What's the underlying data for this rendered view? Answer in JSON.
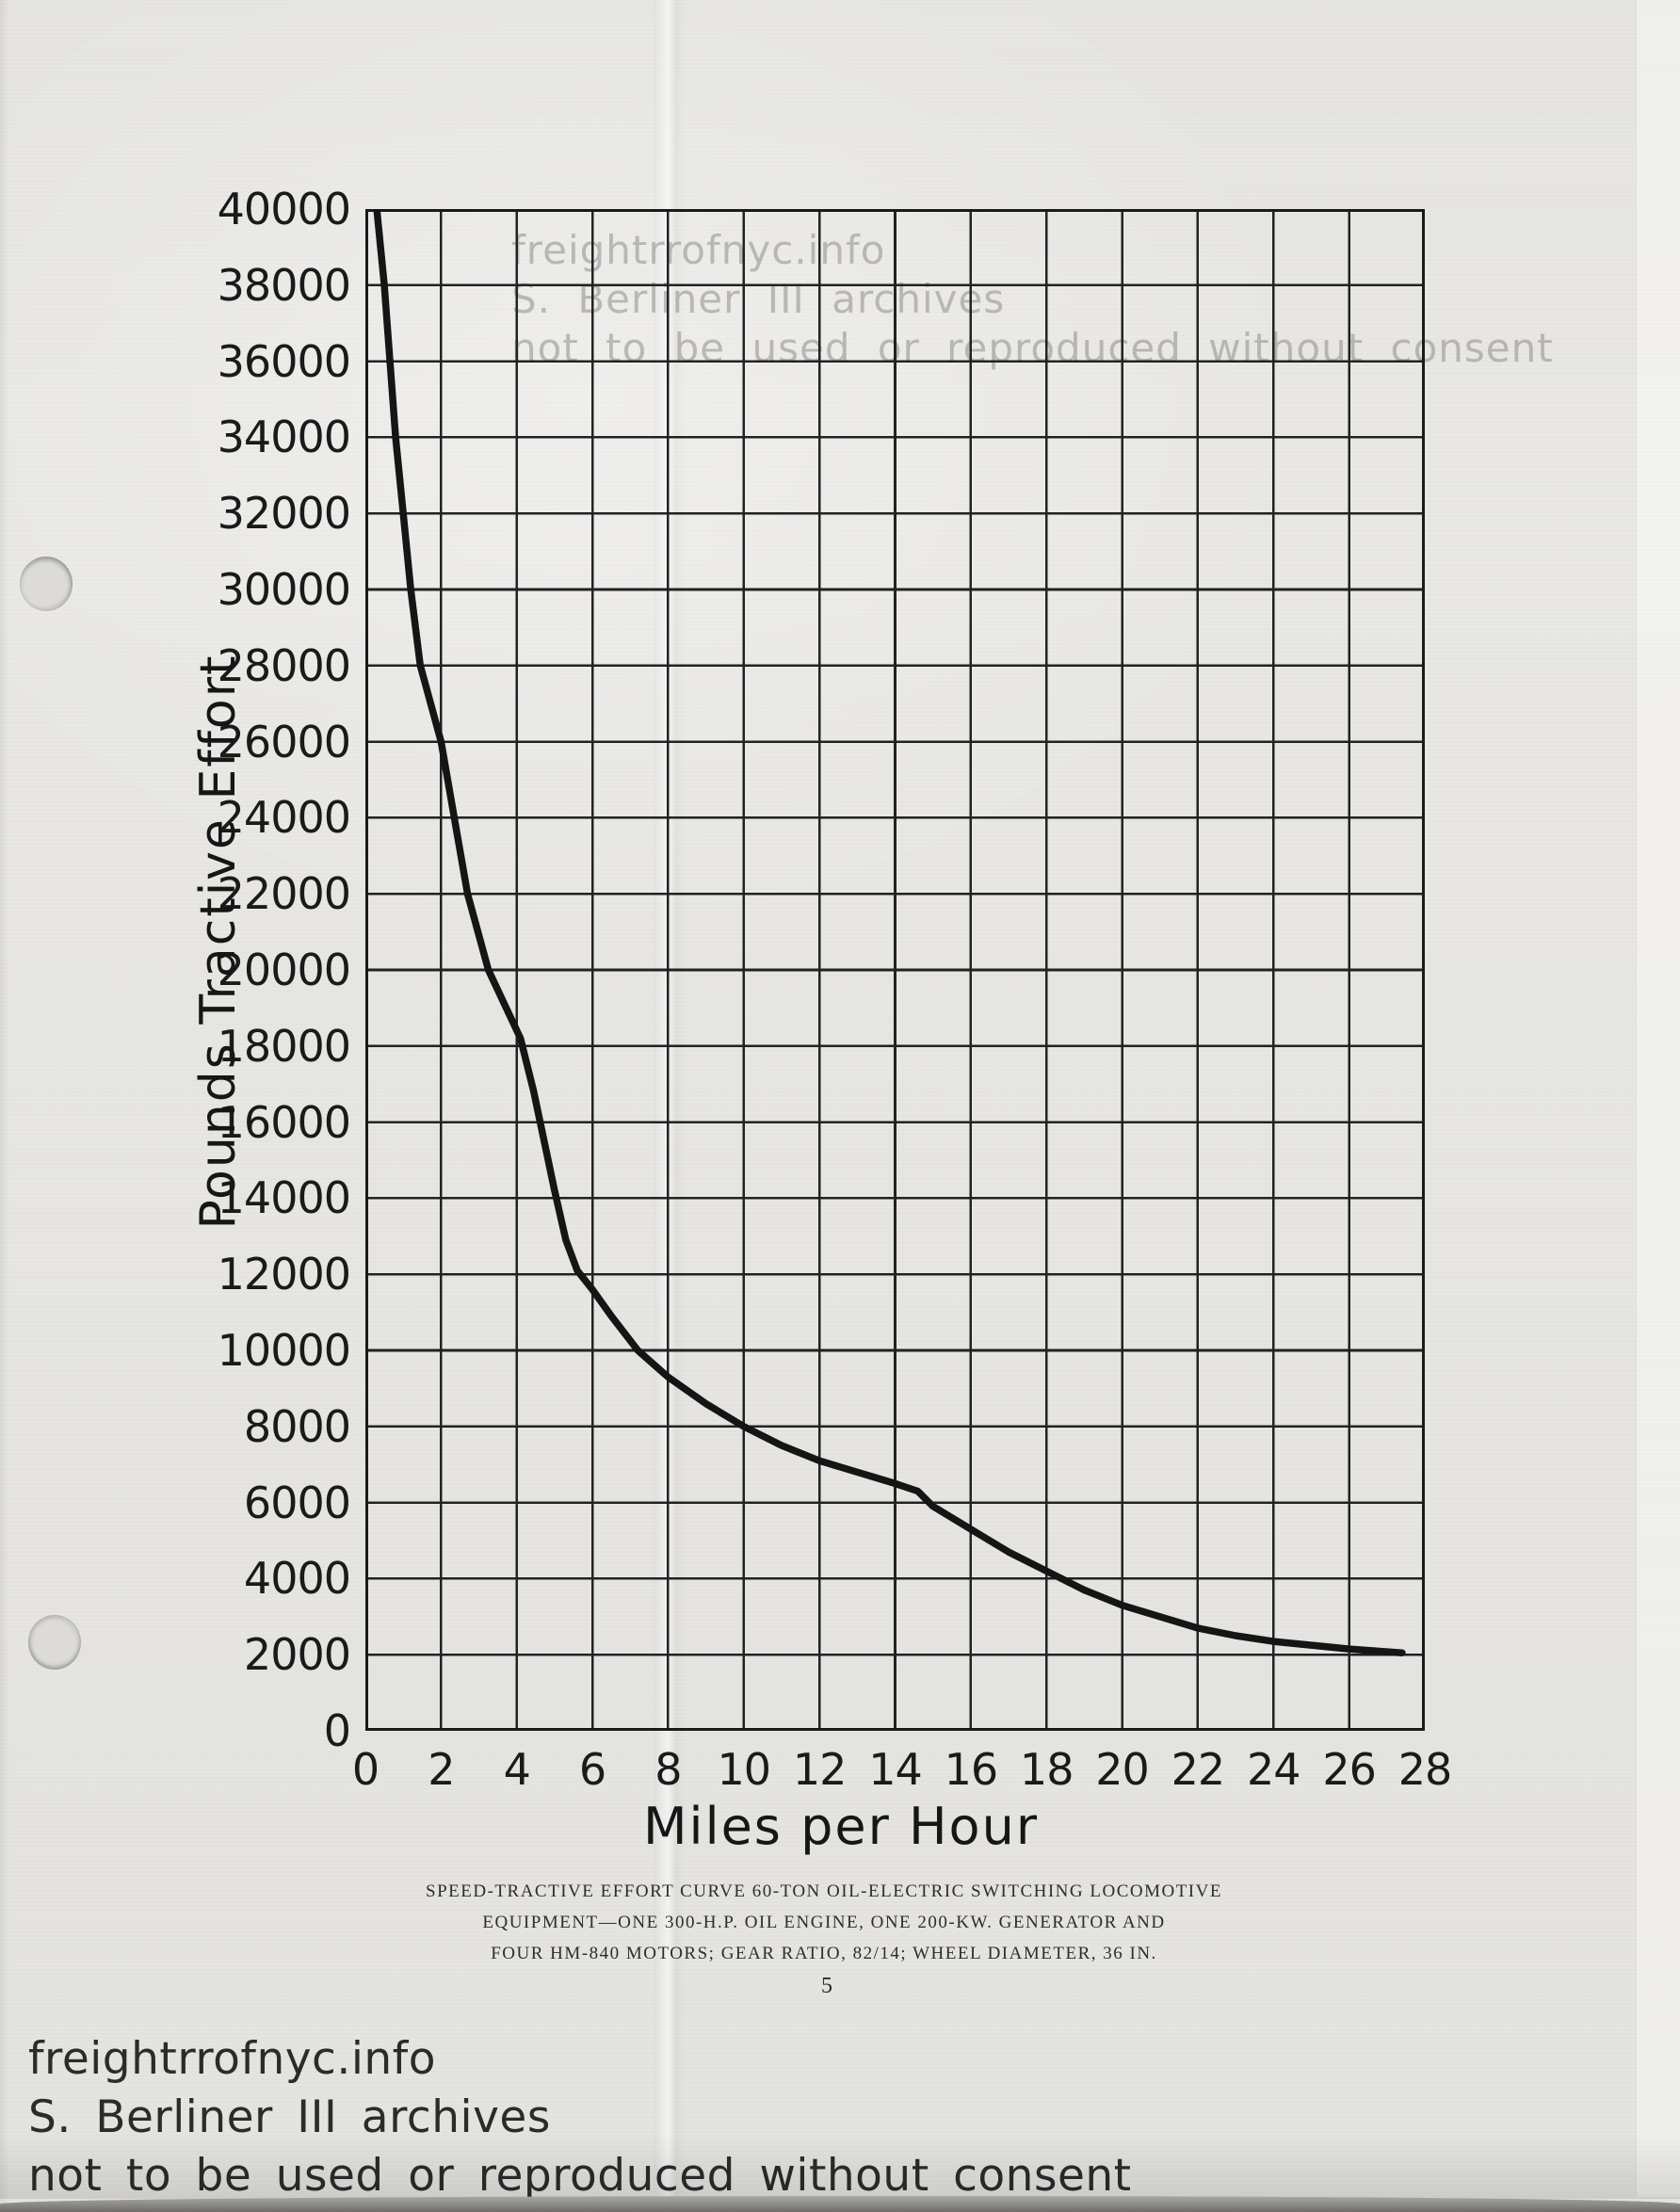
{
  "document": {
    "page_number": "5",
    "caption": {
      "line1": "SPEED-TRACTIVE EFFORT CURVE 60-TON OIL-ELECTRIC SWITCHING LOCOMOTIVE",
      "line2": "EQUIPMENT—ONE 300-H.P. OIL ENGINE, ONE 200-KW. GENERATOR AND",
      "line3": "FOUR HM-840 MOTORS; GEAR RATIO, 82/14; WHEEL DIAMETER, 36 IN."
    },
    "watermark": {
      "line1": "freightrrofnyc.info",
      "line2": "S. Berliner III archives",
      "line3": "not to be used or reproduced without consent"
    }
  },
  "colors": {
    "paper": "#e9e8e5",
    "ink": "#1a1a1a",
    "grid_line": "#222222",
    "curve": "#151515",
    "watermark_faint": "#969593",
    "watermark_dark": "#2b2b2b"
  },
  "chart_data": {
    "type": "line",
    "title": "",
    "xlabel": "Miles per Hour",
    "ylabel": "Pounds Tractive Effort",
    "xlim": [
      0,
      28
    ],
    "ylim": [
      0,
      40000
    ],
    "grid": "on",
    "legend": "none",
    "x_ticks": [
      0,
      2,
      4,
      6,
      8,
      10,
      12,
      14,
      16,
      18,
      20,
      22,
      24,
      26,
      28
    ],
    "y_ticks": [
      0,
      2000,
      4000,
      6000,
      8000,
      10000,
      12000,
      14000,
      16000,
      18000,
      20000,
      22000,
      24000,
      26000,
      28000,
      30000,
      32000,
      34000,
      36000,
      38000,
      40000
    ],
    "series": [
      {
        "name": "speed-tractive-effort-curve",
        "points": [
          [
            0.3,
            40000
          ],
          [
            0.5,
            38000
          ],
          [
            0.65,
            36000
          ],
          [
            0.8,
            34000
          ],
          [
            1.0,
            32000
          ],
          [
            1.2,
            30000
          ],
          [
            1.45,
            28000
          ],
          [
            2.0,
            26000
          ],
          [
            2.35,
            24000
          ],
          [
            2.7,
            22000
          ],
          [
            3.25,
            20000
          ],
          [
            4.1,
            18200
          ],
          [
            4.45,
            16800
          ],
          [
            5.0,
            14200
          ],
          [
            5.3,
            12900
          ],
          [
            5.6,
            12100
          ],
          [
            6.0,
            11600
          ],
          [
            6.5,
            10900
          ],
          [
            7.2,
            10000
          ],
          [
            8.0,
            9300
          ],
          [
            9.0,
            8600
          ],
          [
            10.0,
            8000
          ],
          [
            11.0,
            7500
          ],
          [
            12.0,
            7100
          ],
          [
            13.0,
            6800
          ],
          [
            14.0,
            6500
          ],
          [
            14.6,
            6300
          ],
          [
            15.0,
            5900
          ],
          [
            16.0,
            5300
          ],
          [
            17.0,
            4700
          ],
          [
            18.0,
            4200
          ],
          [
            19.0,
            3700
          ],
          [
            20.0,
            3300
          ],
          [
            21.0,
            3000
          ],
          [
            22.0,
            2700
          ],
          [
            23.0,
            2500
          ],
          [
            24.0,
            2350
          ],
          [
            25.0,
            2250
          ],
          [
            26.0,
            2150
          ],
          [
            27.4,
            2050
          ]
        ]
      }
    ]
  }
}
